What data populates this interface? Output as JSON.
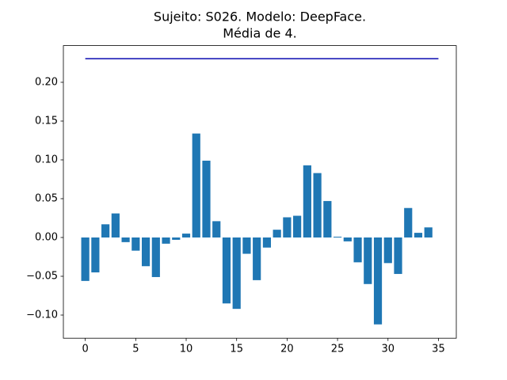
{
  "chart_data": {
    "type": "bar",
    "title": [
      "Sujeito: S026. Modelo: DeepFace.",
      "Média de 4."
    ],
    "x": [
      0,
      1,
      2,
      3,
      4,
      5,
      6,
      7,
      8,
      9,
      10,
      11,
      12,
      13,
      14,
      15,
      16,
      17,
      18,
      19,
      20,
      21,
      22,
      23,
      24,
      25,
      26,
      27,
      28,
      29,
      30,
      31,
      32,
      33,
      34
    ],
    "values": [
      -0.056,
      -0.045,
      0.017,
      0.031,
      -0.006,
      -0.017,
      -0.037,
      -0.051,
      -0.008,
      -0.003,
      0.005,
      0.134,
      0.099,
      0.021,
      -0.085,
      -0.092,
      -0.021,
      -0.055,
      -0.013,
      0.01,
      0.026,
      0.028,
      0.093,
      0.083,
      0.047,
      0.001,
      -0.005,
      -0.032,
      -0.06,
      -0.112,
      -0.033,
      -0.047,
      0.038,
      0.006,
      0.013
    ],
    "color": "#1f77b4",
    "lines": [
      {
        "x": [
          0,
          35
        ],
        "values": [
          0.2305,
          0.2305
        ],
        "color": "#0a0ab0"
      }
    ],
    "xlim": [
      -2.17,
      36.77
    ],
    "ylim": [
      -0.1298,
      0.2473
    ],
    "xticks": [
      0,
      5,
      10,
      15,
      20,
      25,
      30,
      35
    ],
    "yticks": [
      {
        "value": -0.1,
        "label": "−0.10"
      },
      {
        "value": -0.05,
        "label": "−0.05"
      },
      {
        "value": 0,
        "label": "0.00"
      },
      {
        "value": 0.05,
        "label": "0.05"
      },
      {
        "value": 0.1,
        "label": "0.10"
      },
      {
        "value": 0.15,
        "label": "0.15"
      },
      {
        "value": 0.2,
        "label": "0.20"
      }
    ]
  }
}
